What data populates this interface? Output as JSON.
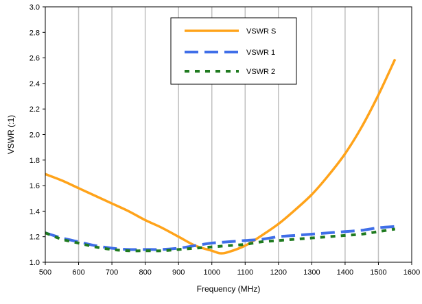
{
  "chart_data": {
    "type": "line",
    "title": "",
    "xlabel": "Frequency (MHz)",
    "ylabel": "VSWR (:1)",
    "xlim": [
      500,
      1600
    ],
    "ylim": [
      1.0,
      3.0
    ],
    "x_ticks": [
      500,
      600,
      700,
      800,
      900,
      1000,
      1100,
      1200,
      1300,
      1400,
      1500,
      1600
    ],
    "x_tick_labels": [
      "500",
      "600",
      "700",
      "800",
      "900",
      "1000",
      "1100",
      "1200",
      "1300",
      "1400",
      "1500",
      "1600"
    ],
    "y_ticks": [
      1.0,
      1.2,
      1.4,
      1.6,
      1.8,
      2.0,
      2.2,
      2.4,
      2.6,
      2.8,
      3.0
    ],
    "y_tick_labels": [
      "1.0",
      "1.2",
      "1.4",
      "1.6",
      "1.8",
      "2.0",
      "2.2",
      "2.4",
      "2.6",
      "2.8",
      "3.0"
    ],
    "grid": "vertical",
    "legend_position": "top-right",
    "series": [
      {
        "name": "VSWR S",
        "color": "#FFA31A",
        "style": "solid",
        "x": [
          500,
          550,
          600,
          650,
          700,
          750,
          800,
          850,
          900,
          950,
          1000,
          1025,
          1050,
          1100,
          1150,
          1200,
          1250,
          1300,
          1350,
          1400,
          1450,
          1500,
          1550
        ],
        "y": [
          1.69,
          1.64,
          1.58,
          1.52,
          1.46,
          1.4,
          1.33,
          1.27,
          1.2,
          1.13,
          1.09,
          1.07,
          1.08,
          1.13,
          1.21,
          1.3,
          1.41,
          1.53,
          1.68,
          1.85,
          2.06,
          2.31,
          2.59
        ]
      },
      {
        "name": "VSWR 1",
        "color": "#3F6EE8",
        "style": "dashed",
        "x": [
          500,
          550,
          600,
          650,
          700,
          750,
          800,
          850,
          900,
          950,
          1000,
          1050,
          1100,
          1150,
          1200,
          1250,
          1300,
          1350,
          1400,
          1450,
          1500,
          1550
        ],
        "y": [
          1.23,
          1.19,
          1.16,
          1.13,
          1.11,
          1.1,
          1.1,
          1.1,
          1.11,
          1.13,
          1.15,
          1.16,
          1.17,
          1.18,
          1.2,
          1.21,
          1.22,
          1.23,
          1.24,
          1.25,
          1.27,
          1.28
        ]
      },
      {
        "name": "VSWR 2",
        "color": "#1F7A1F",
        "style": "dotted",
        "x": [
          500,
          550,
          600,
          650,
          700,
          750,
          800,
          850,
          900,
          950,
          1000,
          1050,
          1100,
          1150,
          1200,
          1250,
          1300,
          1350,
          1400,
          1450,
          1500,
          1550
        ],
        "y": [
          1.23,
          1.18,
          1.15,
          1.12,
          1.1,
          1.09,
          1.09,
          1.09,
          1.1,
          1.11,
          1.12,
          1.13,
          1.14,
          1.16,
          1.17,
          1.18,
          1.19,
          1.2,
          1.21,
          1.22,
          1.24,
          1.26
        ]
      }
    ]
  }
}
